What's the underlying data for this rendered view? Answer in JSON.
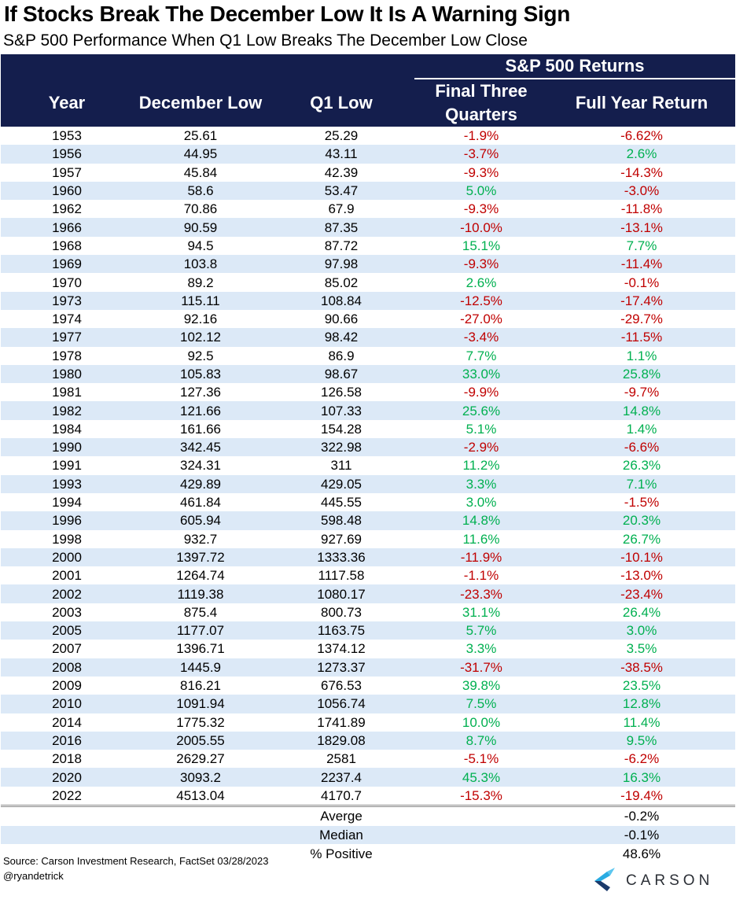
{
  "title": "If Stocks Break The December Low It Is A Warning Sign",
  "subtitle": "S&P 500 Performance When Q1 Low Breaks The December Low Close",
  "colors": {
    "header_bg": "#141e4d",
    "negative": "#c00000",
    "positive": "#00b050",
    "stripe": "#dce9f7"
  },
  "header": {
    "group_label": "S&P 500 Returns",
    "year": "Year",
    "december_low": "December Low",
    "q1_low": "Q1 Low",
    "final_three_quarters": "Final Three Quarters",
    "full_year_return": "Full Year Return"
  },
  "rows": [
    [
      "1953",
      "25.61",
      "25.29",
      "-1.9%",
      "-6.62%"
    ],
    [
      "1956",
      "44.95",
      "43.11",
      "-3.7%",
      "2.6%"
    ],
    [
      "1957",
      "45.84",
      "42.39",
      "-9.3%",
      "-14.3%"
    ],
    [
      "1960",
      "58.6",
      "53.47",
      "5.0%",
      "-3.0%"
    ],
    [
      "1962",
      "70.86",
      "67.9",
      "-9.3%",
      "-11.8%"
    ],
    [
      "1966",
      "90.59",
      "87.35",
      "-10.0%",
      "-13.1%"
    ],
    [
      "1968",
      "94.5",
      "87.72",
      "15.1%",
      "7.7%"
    ],
    [
      "1969",
      "103.8",
      "97.98",
      "-9.3%",
      "-11.4%"
    ],
    [
      "1970",
      "89.2",
      "85.02",
      "2.6%",
      "-0.1%"
    ],
    [
      "1973",
      "115.11",
      "108.84",
      "-12.5%",
      "-17.4%"
    ],
    [
      "1974",
      "92.16",
      "90.66",
      "-27.0%",
      "-29.7%"
    ],
    [
      "1977",
      "102.12",
      "98.42",
      "-3.4%",
      "-11.5%"
    ],
    [
      "1978",
      "92.5",
      "86.9",
      "7.7%",
      "1.1%"
    ],
    [
      "1980",
      "105.83",
      "98.67",
      "33.0%",
      "25.8%"
    ],
    [
      "1981",
      "127.36",
      "126.58",
      "-9.9%",
      "-9.7%"
    ],
    [
      "1982",
      "121.66",
      "107.33",
      "25.6%",
      "14.8%"
    ],
    [
      "1984",
      "161.66",
      "154.28",
      "5.1%",
      "1.4%"
    ],
    [
      "1990",
      "342.45",
      "322.98",
      "-2.9%",
      "-6.6%"
    ],
    [
      "1991",
      "324.31",
      "311",
      "11.2%",
      "26.3%"
    ],
    [
      "1993",
      "429.89",
      "429.05",
      "3.3%",
      "7.1%"
    ],
    [
      "1994",
      "461.84",
      "445.55",
      "3.0%",
      "-1.5%"
    ],
    [
      "1996",
      "605.94",
      "598.48",
      "14.8%",
      "20.3%"
    ],
    [
      "1998",
      "932.7",
      "927.69",
      "11.6%",
      "26.7%"
    ],
    [
      "2000",
      "1397.72",
      "1333.36",
      "-11.9%",
      "-10.1%"
    ],
    [
      "2001",
      "1264.74",
      "1117.58",
      "-1.1%",
      "-13.0%"
    ],
    [
      "2002",
      "1119.38",
      "1080.17",
      "-23.3%",
      "-23.4%"
    ],
    [
      "2003",
      "875.4",
      "800.73",
      "31.1%",
      "26.4%"
    ],
    [
      "2005",
      "1177.07",
      "1163.75",
      "5.7%",
      "3.0%"
    ],
    [
      "2007",
      "1396.71",
      "1374.12",
      "3.3%",
      "3.5%"
    ],
    [
      "2008",
      "1445.9",
      "1273.37",
      "-31.7%",
      "-38.5%"
    ],
    [
      "2009",
      "816.21",
      "676.53",
      "39.8%",
      "23.5%"
    ],
    [
      "2010",
      "1091.94",
      "1056.74",
      "7.5%",
      "12.8%"
    ],
    [
      "2014",
      "1775.32",
      "1741.89",
      "10.0%",
      "11.4%"
    ],
    [
      "2016",
      "2005.55",
      "1829.08",
      "8.7%",
      "9.5%"
    ],
    [
      "2018",
      "2629.27",
      "2581",
      "-5.1%",
      "-6.2%"
    ],
    [
      "2020",
      "3093.2",
      "2237.4",
      "45.3%",
      "16.3%"
    ],
    [
      "2022",
      "4513.04",
      "4170.7",
      "-15.3%",
      "-19.4%"
    ]
  ],
  "summary": [
    {
      "label": "Averge",
      "value": "-0.2%"
    },
    {
      "label": "Median",
      "value": "-0.1%"
    },
    {
      "label": "% Positive",
      "value": "48.6%"
    }
  ],
  "source": "Source: Carson Investment Research, FactSet 03/28/2023",
  "handle": "@ryandetrick",
  "logo_text": "CARSON",
  "chart_data": {
    "type": "table",
    "title": "If Stocks Break The December Low It Is A Warning Sign",
    "subtitle": "S&P 500 Performance When Q1 Low Breaks The December Low Close",
    "columns": [
      "Year",
      "December Low",
      "Q1 Low",
      "Final Three Quarters",
      "Full Year Return"
    ],
    "column_group": {
      "label": "S&P 500 Returns",
      "columns": [
        "Final Three Quarters",
        "Full Year Return"
      ]
    },
    "x": [
      1953,
      1956,
      1957,
      1960,
      1962,
      1966,
      1968,
      1969,
      1970,
      1973,
      1974,
      1977,
      1978,
      1980,
      1981,
      1982,
      1984,
      1990,
      1991,
      1993,
      1994,
      1996,
      1998,
      2000,
      2001,
      2002,
      2003,
      2005,
      2007,
      2008,
      2009,
      2010,
      2014,
      2016,
      2018,
      2020,
      2022
    ],
    "series": [
      {
        "name": "December Low",
        "values": [
          25.61,
          44.95,
          45.84,
          58.6,
          70.86,
          90.59,
          94.5,
          103.8,
          89.2,
          115.11,
          92.16,
          102.12,
          92.5,
          105.83,
          127.36,
          121.66,
          161.66,
          342.45,
          324.31,
          429.89,
          461.84,
          605.94,
          932.7,
          1397.72,
          1264.74,
          1119.38,
          875.4,
          1177.07,
          1396.71,
          1445.9,
          816.21,
          1091.94,
          1775.32,
          2005.55,
          2629.27,
          3093.2,
          4513.04
        ]
      },
      {
        "name": "Q1 Low",
        "values": [
          25.29,
          43.11,
          42.39,
          53.47,
          67.9,
          87.35,
          87.72,
          97.98,
          85.02,
          108.84,
          90.66,
          98.42,
          86.9,
          98.67,
          126.58,
          107.33,
          154.28,
          322.98,
          311,
          429.05,
          445.55,
          598.48,
          927.69,
          1333.36,
          1117.58,
          1080.17,
          800.73,
          1163.75,
          1374.12,
          1273.37,
          676.53,
          1056.74,
          1741.89,
          1829.08,
          2581,
          2237.4,
          4170.7
        ]
      },
      {
        "name": "Final Three Quarters",
        "values": [
          -1.9,
          -3.7,
          -9.3,
          5.0,
          -9.3,
          -10.0,
          15.1,
          -9.3,
          2.6,
          -12.5,
          -27.0,
          -3.4,
          7.7,
          33.0,
          -9.9,
          25.6,
          5.1,
          -2.9,
          11.2,
          3.3,
          3.0,
          14.8,
          11.6,
          -11.9,
          -1.1,
          -23.3,
          31.1,
          5.7,
          3.3,
          -31.7,
          39.8,
          7.5,
          10.0,
          8.7,
          -5.1,
          45.3,
          -15.3
        ]
      },
      {
        "name": "Full Year Return",
        "values": [
          -6.62,
          2.6,
          -14.3,
          -3.0,
          -11.8,
          -13.1,
          7.7,
          -11.4,
          -0.1,
          -17.4,
          -29.7,
          -11.5,
          1.1,
          25.8,
          -9.7,
          14.8,
          1.4,
          -6.6,
          26.3,
          7.1,
          -1.5,
          20.3,
          26.7,
          -10.1,
          -13.0,
          -23.4,
          26.4,
          3.0,
          3.5,
          -38.5,
          23.5,
          12.8,
          11.4,
          9.5,
          -6.2,
          16.3,
          -19.4
        ]
      }
    ],
    "summary": {
      "Averge": -0.2,
      "Median": -0.1,
      "% Positive": 48.6
    }
  }
}
